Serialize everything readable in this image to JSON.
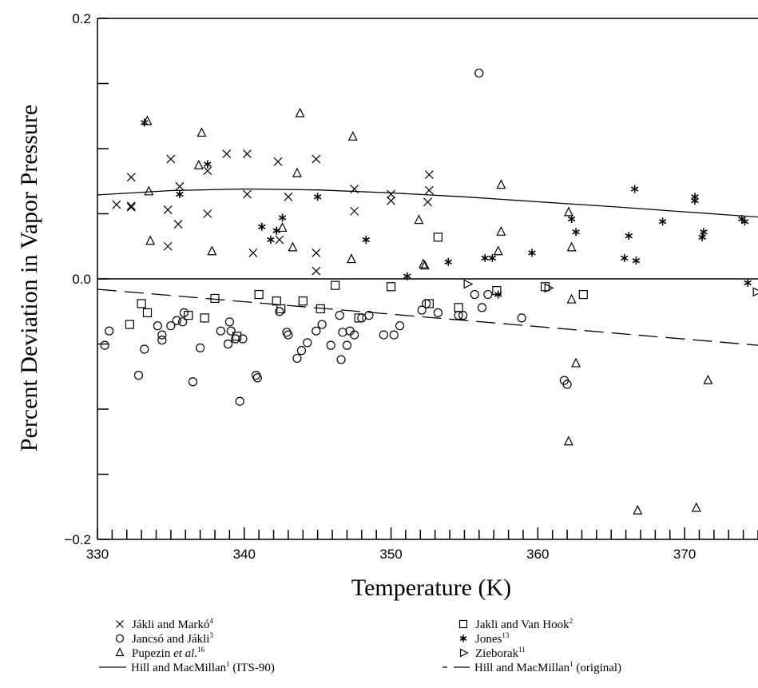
{
  "chart_data": {
    "type": "scatter",
    "title": "",
    "xlabel": "Temperature (K)",
    "ylabel": "Percent Deviation in Vapor Pressure",
    "xlim": [
      330,
      375
    ],
    "ylim": [
      -0.2,
      0.2
    ],
    "x_ticks": [
      330,
      340,
      350,
      360,
      370
    ],
    "x_tick_labels": [
      "330",
      "340",
      "350",
      "360",
      "370"
    ],
    "y_ticks": [
      -0.2,
      0.0,
      0.2
    ],
    "y_tick_labels": [
      "−0.2",
      "0.0",
      "0.2"
    ],
    "grid": false,
    "legend_position": "bottom",
    "series": [
      {
        "name": "Jákli and Markó",
        "ref": "4",
        "marker": "x",
        "points": [
          [
            331.3,
            0.057
          ],
          [
            332.3,
            0.078
          ],
          [
            332.3,
            0.056
          ],
          [
            332.3,
            0.055
          ],
          [
            334.8,
            0.053
          ],
          [
            334.8,
            0.025
          ],
          [
            335.0,
            0.092
          ],
          [
            335.5,
            0.042
          ],
          [
            335.6,
            0.071
          ],
          [
            337.5,
            0.083
          ],
          [
            337.5,
            0.05
          ],
          [
            338.8,
            0.096
          ],
          [
            340.2,
            0.096
          ],
          [
            340.2,
            0.065
          ],
          [
            340.6,
            0.02
          ],
          [
            342.3,
            0.09
          ],
          [
            342.4,
            0.03
          ],
          [
            343.0,
            0.063
          ],
          [
            344.9,
            0.092
          ],
          [
            344.9,
            0.02
          ],
          [
            344.9,
            0.006
          ],
          [
            347.5,
            0.069
          ],
          [
            347.5,
            0.052
          ],
          [
            350.0,
            0.065
          ],
          [
            350.0,
            0.06
          ],
          [
            352.5,
            0.059
          ],
          [
            352.6,
            0.08
          ],
          [
            352.6,
            0.068
          ]
        ]
      },
      {
        "name": "Jancsó and Jákli",
        "ref": "3",
        "marker": "circle",
        "points": [
          [
            330.5,
            -0.051
          ],
          [
            330.8,
            -0.04
          ],
          [
            332.8,
            -0.074
          ],
          [
            333.2,
            -0.054
          ],
          [
            334.1,
            -0.036
          ],
          [
            334.4,
            -0.043
          ],
          [
            334.4,
            -0.047
          ],
          [
            335.0,
            -0.036
          ],
          [
            335.4,
            -0.032
          ],
          [
            335.8,
            -0.033
          ],
          [
            335.9,
            -0.026
          ],
          [
            336.5,
            -0.079
          ],
          [
            337.0,
            -0.053
          ],
          [
            338.4,
            -0.04
          ],
          [
            338.9,
            -0.05
          ],
          [
            339.0,
            -0.033
          ],
          [
            339.1,
            -0.04
          ],
          [
            339.4,
            -0.046
          ],
          [
            339.7,
            -0.094
          ],
          [
            339.9,
            -0.046
          ],
          [
            340.8,
            -0.074
          ],
          [
            340.9,
            -0.076
          ],
          [
            342.4,
            -0.025
          ],
          [
            342.9,
            -0.041
          ],
          [
            343.0,
            -0.043
          ],
          [
            343.6,
            -0.061
          ],
          [
            343.9,
            -0.055
          ],
          [
            344.3,
            -0.049
          ],
          [
            344.9,
            -0.04
          ],
          [
            345.3,
            -0.035
          ],
          [
            345.9,
            -0.051
          ],
          [
            346.5,
            -0.028
          ],
          [
            346.6,
            -0.062
          ],
          [
            346.7,
            -0.041
          ],
          [
            347.0,
            -0.051
          ],
          [
            347.2,
            -0.04
          ],
          [
            347.5,
            -0.043
          ],
          [
            348.0,
            -0.03
          ],
          [
            348.5,
            -0.028
          ],
          [
            349.5,
            -0.043
          ],
          [
            350.2,
            -0.043
          ],
          [
            350.6,
            -0.036
          ],
          [
            352.1,
            -0.024
          ],
          [
            352.4,
            -0.019
          ],
          [
            353.2,
            -0.026
          ],
          [
            354.6,
            -0.028
          ],
          [
            354.9,
            -0.028
          ],
          [
            355.7,
            -0.012
          ],
          [
            356.0,
            0.158
          ],
          [
            356.2,
            -0.022
          ],
          [
            356.6,
            -0.012
          ],
          [
            358.9,
            -0.03
          ],
          [
            361.8,
            -0.078
          ],
          [
            362.0,
            -0.081
          ]
        ]
      },
      {
        "name": "Pupezin et al.",
        "ref": "16",
        "marker": "triangle",
        "points": [
          [
            333.4,
            0.121
          ],
          [
            333.5,
            0.067
          ],
          [
            333.6,
            0.029
          ],
          [
            336.9,
            0.087
          ],
          [
            337.1,
            0.112
          ],
          [
            337.8,
            0.021
          ],
          [
            342.6,
            0.039
          ],
          [
            343.3,
            0.024
          ],
          [
            343.6,
            0.081
          ],
          [
            343.8,
            0.127
          ],
          [
            347.3,
            0.015
          ],
          [
            347.4,
            0.109
          ],
          [
            351.9,
            0.045
          ],
          [
            352.2,
            0.011
          ],
          [
            352.3,
            0.01
          ],
          [
            357.3,
            0.021
          ],
          [
            357.5,
            0.072
          ],
          [
            357.5,
            0.036
          ],
          [
            362.1,
            0.051
          ],
          [
            362.3,
            0.024
          ],
          [
            362.3,
            -0.016
          ],
          [
            362.6,
            -0.065
          ],
          [
            362.1,
            -0.125
          ],
          [
            366.8,
            -0.178
          ],
          [
            370.8,
            -0.176
          ],
          [
            371.6,
            -0.078
          ]
        ]
      },
      {
        "name": "Jakli and Van Hook",
        "ref": "2",
        "marker": "square",
        "points": [
          [
            332.2,
            -0.035
          ],
          [
            333.0,
            -0.019
          ],
          [
            333.4,
            -0.026
          ],
          [
            336.2,
            -0.028
          ],
          [
            337.3,
            -0.03
          ],
          [
            338.0,
            -0.015
          ],
          [
            339.5,
            -0.044
          ],
          [
            341.0,
            -0.012
          ],
          [
            342.2,
            -0.017
          ],
          [
            342.5,
            -0.023
          ],
          [
            344.0,
            -0.017
          ],
          [
            345.2,
            -0.023
          ],
          [
            346.2,
            -0.005
          ],
          [
            347.8,
            -0.03
          ],
          [
            350.0,
            -0.006
          ],
          [
            352.6,
            -0.019
          ],
          [
            353.2,
            0.032
          ],
          [
            354.6,
            -0.022
          ],
          [
            357.2,
            -0.009
          ],
          [
            360.5,
            -0.006
          ],
          [
            363.1,
            -0.012
          ]
        ]
      },
      {
        "name": "Jones",
        "ref": "13",
        "marker": "star",
        "points": [
          [
            333.2,
            0.12
          ],
          [
            335.6,
            0.065
          ],
          [
            337.5,
            0.088
          ],
          [
            341.2,
            0.04
          ],
          [
            341.8,
            0.03
          ],
          [
            342.2,
            0.037
          ],
          [
            342.6,
            0.047
          ],
          [
            345.0,
            0.063
          ],
          [
            348.3,
            0.03
          ],
          [
            351.1,
            0.002
          ],
          [
            353.9,
            0.013
          ],
          [
            356.4,
            0.016
          ],
          [
            356.9,
            0.016
          ],
          [
            357.3,
            -0.012
          ],
          [
            359.6,
            0.02
          ],
          [
            362.3,
            0.046
          ],
          [
            362.6,
            0.036
          ],
          [
            365.9,
            0.016
          ],
          [
            366.2,
            0.033
          ],
          [
            366.6,
            0.069
          ],
          [
            366.7,
            0.014
          ],
          [
            368.5,
            0.044
          ],
          [
            370.7,
            0.063
          ],
          [
            370.7,
            0.06
          ],
          [
            371.3,
            0.036
          ],
          [
            371.2,
            0.032
          ],
          [
            373.9,
            0.046
          ],
          [
            374.1,
            0.044
          ],
          [
            374.3,
            -0.003
          ]
        ]
      },
      {
        "name": "Zieborak",
        "ref": "11",
        "marker": "triangle-right",
        "points": [
          [
            355.2,
            -0.004
          ],
          [
            360.7,
            -0.007
          ],
          [
            374.9,
            -0.01
          ]
        ]
      }
    ],
    "lines": [
      {
        "name": "Hill and MacMillan",
        "ref": "1",
        "suffix": " (ITS-90)",
        "style": "solid",
        "x": [
          330,
          335,
          340,
          345,
          350,
          355,
          360,
          365,
          370,
          375
        ],
        "y": [
          0.0645,
          0.0678,
          0.069,
          0.0683,
          0.066,
          0.063,
          0.0592,
          0.0555,
          0.0515,
          0.0475
        ]
      },
      {
        "name": "Hill and MacMillan",
        "ref": "1",
        "suffix": " (original)",
        "style": "dashed",
        "x": [
          330,
          375
        ],
        "y": [
          -0.008,
          -0.051
        ]
      },
      {
        "name": "",
        "style": "zero",
        "x": [
          330,
          375
        ],
        "y": [
          0,
          0
        ]
      }
    ]
  },
  "legend": {
    "items": [
      {
        "marker": "x",
        "text": "Jákli and Markó",
        "ref": "4",
        "suffix": ""
      },
      {
        "marker": "square",
        "text": "Jakli and Van Hook",
        "ref": "2",
        "suffix": ""
      },
      {
        "marker": "circle",
        "text": "Jancsó and Jákli",
        "ref": "3",
        "suffix": ""
      },
      {
        "marker": "star",
        "text": "Jones",
        "ref": "13",
        "suffix": ""
      },
      {
        "marker": "triangle",
        "text": "Pupezin ",
        "italic": "et al.",
        "ref": "16",
        "suffix": ""
      },
      {
        "marker": "triangle-right",
        "text": "Zieborak",
        "ref": "11",
        "suffix": ""
      },
      {
        "marker": "solid-line",
        "text": "Hill and MacMillan",
        "ref": "1",
        "suffix": " (ITS-90)"
      },
      {
        "marker": "dashed-line",
        "text": "Hill and MacMillan",
        "ref": "1",
        "suffix": " (original)"
      }
    ]
  }
}
